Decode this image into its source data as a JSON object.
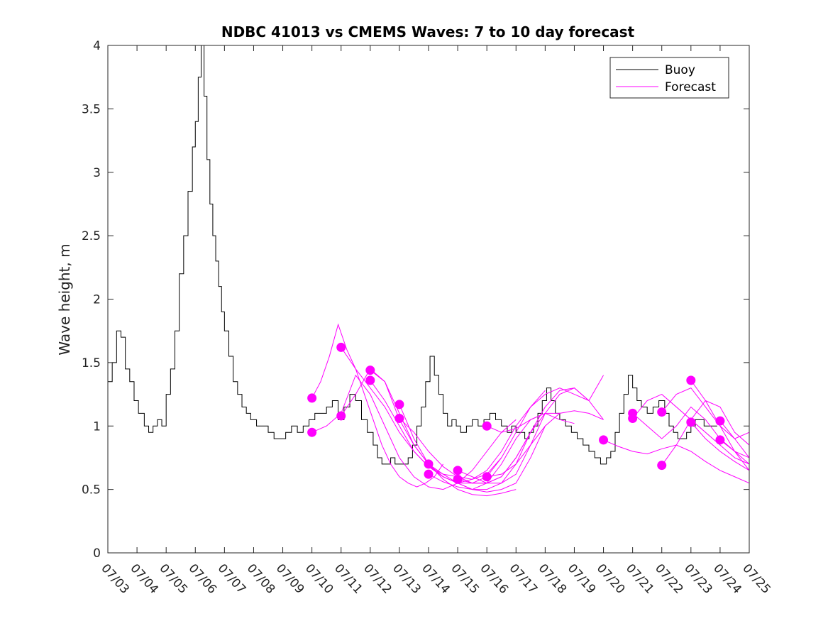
{
  "chart_data": {
    "type": "line",
    "title": "NDBC 41013 vs CMEMS Waves: 7 to 10 day forecast",
    "xlabel": "",
    "ylabel": "Wave height, m",
    "x_tick_labels": [
      "07/03",
      "07/04",
      "07/05",
      "07/06",
      "07/07",
      "07/08",
      "07/09",
      "07/10",
      "07/11",
      "07/12",
      "07/13",
      "07/14",
      "07/15",
      "07/16",
      "07/17",
      "07/18",
      "07/19",
      "07/20",
      "07/21",
      "07/22",
      "07/23",
      "07/24",
      "07/25"
    ],
    "xlim": [
      0,
      22
    ],
    "ylim": [
      0,
      4
    ],
    "y_ticks": [
      0,
      0.5,
      1,
      1.5,
      2,
      2.5,
      3,
      3.5,
      4
    ],
    "y_tick_labels": [
      "0",
      "0.5",
      "1",
      "1.5",
      "2",
      "2.5",
      "3",
      "3.5",
      "4"
    ],
    "grid": false,
    "legend": {
      "placement": "top-right",
      "entries": [
        "Buoy",
        "Forecast"
      ]
    },
    "colors": {
      "buoy": "#000000",
      "forecast": "#ff00ff"
    },
    "series": [
      {
        "name": "Buoy",
        "x": [
          0,
          0.15,
          0.3,
          0.45,
          0.6,
          0.75,
          0.9,
          1.05,
          1.25,
          1.4,
          1.55,
          1.7,
          1.85,
          2.0,
          2.15,
          2.3,
          2.45,
          2.6,
          2.75,
          2.9,
          3.0,
          3.1,
          3.2,
          3.3,
          3.4,
          3.5,
          3.6,
          3.7,
          3.8,
          3.9,
          4.0,
          4.15,
          4.3,
          4.45,
          4.6,
          4.75,
          4.9,
          5.1,
          5.3,
          5.5,
          5.7,
          5.9,
          6.1,
          6.3,
          6.5,
          6.7,
          6.9,
          7.1,
          7.3,
          7.5,
          7.7,
          7.9,
          8.1,
          8.3,
          8.5,
          8.7,
          8.9,
          9.1,
          9.25,
          9.4,
          9.55,
          9.7,
          9.85,
          10.0,
          10.15,
          10.3,
          10.45,
          10.6,
          10.75,
          10.9,
          11.05,
          11.2,
          11.35,
          11.5,
          11.65,
          11.8,
          11.95,
          12.1,
          12.3,
          12.5,
          12.7,
          12.9,
          13.1,
          13.3,
          13.5,
          13.7,
          13.85,
          14.0,
          14.15,
          14.3,
          14.45,
          14.6,
          14.75,
          14.9,
          15.05,
          15.2,
          15.35,
          15.5,
          15.7,
          15.9,
          16.1,
          16.3,
          16.5,
          16.7,
          16.9,
          17.1,
          17.25,
          17.4,
          17.55,
          17.7,
          17.85,
          18.0,
          18.15,
          18.3,
          18.5,
          18.7,
          18.9,
          19.1,
          19.25,
          19.4,
          19.55,
          19.7,
          19.85,
          20.0,
          20.15,
          20.3,
          20.45,
          20.6,
          20.75,
          20.9
        ],
        "values": [
          1.35,
          1.5,
          1.75,
          1.7,
          1.45,
          1.35,
          1.2,
          1.1,
          1.0,
          0.95,
          1.0,
          1.05,
          1.0,
          1.25,
          1.45,
          1.75,
          2.2,
          2.5,
          2.85,
          3.2,
          3.4,
          3.75,
          4.0,
          3.6,
          3.1,
          2.75,
          2.5,
          2.3,
          2.1,
          1.9,
          1.75,
          1.55,
          1.35,
          1.25,
          1.15,
          1.1,
          1.05,
          1.0,
          1.0,
          0.95,
          0.9,
          0.9,
          0.95,
          1.0,
          0.95,
          1.0,
          1.05,
          1.1,
          1.1,
          1.15,
          1.2,
          1.05,
          1.15,
          1.25,
          1.2,
          1.05,
          0.95,
          0.85,
          0.75,
          0.7,
          0.7,
          0.75,
          0.7,
          0.7,
          0.7,
          0.75,
          0.85,
          1.0,
          1.15,
          1.35,
          1.55,
          1.4,
          1.25,
          1.1,
          1.0,
          1.05,
          1.0,
          0.95,
          1.0,
          1.05,
          1.0,
          1.05,
          1.1,
          1.05,
          1.0,
          0.95,
          1.0,
          0.95,
          0.95,
          0.9,
          0.95,
          1.0,
          1.1,
          1.2,
          1.3,
          1.2,
          1.1,
          1.05,
          1.0,
          0.95,
          0.9,
          0.85,
          0.8,
          0.75,
          0.7,
          0.75,
          0.8,
          0.95,
          1.1,
          1.25,
          1.4,
          1.3,
          1.2,
          1.15,
          1.1,
          1.15,
          1.2,
          1.1,
          1.0,
          0.95,
          0.9,
          0.9,
          0.95,
          1.0,
          1.05,
          1.05,
          1.0,
          1.0,
          1.0,
          1.0
        ]
      },
      {
        "name": "Forecast",
        "runs": [
          {
            "x": [
              7.0,
              7.3,
              7.6,
              7.9,
              8.2,
              8.5,
              8.8,
              9.1,
              9.4,
              9.7,
              10.0,
              10.3,
              10.6,
              10.9,
              11.2,
              11.5
            ],
            "values": [
              1.22,
              1.35,
              1.55,
              1.8,
              1.6,
              1.45,
              1.25,
              1.05,
              0.85,
              0.7,
              0.6,
              0.55,
              0.52,
              0.55,
              0.6,
              0.7
            ]
          },
          {
            "x": [
              7.0,
              7.5,
              8.0,
              8.5,
              9.0,
              9.5,
              10.0,
              10.5,
              11.0,
              11.5,
              12.0,
              12.5,
              13.0,
              13.5,
              14.0
            ],
            "values": [
              0.95,
              1.0,
              1.1,
              1.4,
              1.25,
              1.0,
              0.75,
              0.6,
              0.52,
              0.5,
              0.55,
              0.65,
              0.8,
              0.95,
              1.05
            ]
          },
          {
            "x": [
              8.0,
              8.5,
              9.0,
              9.5,
              10.0,
              10.5,
              11.0,
              11.5,
              12.0,
              12.5,
              13.0,
              13.5,
              14.0,
              14.5,
              15.0
            ],
            "values": [
              1.62,
              1.45,
              1.3,
              1.15,
              0.95,
              0.8,
              0.68,
              0.6,
              0.55,
              0.55,
              0.6,
              0.75,
              0.95,
              1.15,
              1.28
            ]
          },
          {
            "x": [
              8.0,
              8.5,
              9.0,
              9.5,
              10.0,
              10.5,
              11.0,
              11.5,
              12.0,
              12.5,
              13.0,
              13.5,
              14.0,
              14.5,
              15.0,
              15.5,
              16.0,
              16.5,
              17.0
            ],
            "values": [
              1.08,
              1.25,
              1.45,
              1.35,
              1.05,
              0.85,
              0.7,
              0.6,
              0.55,
              0.58,
              0.65,
              0.8,
              1.0,
              1.15,
              1.25,
              1.3,
              1.25,
              1.2,
              1.4
            ]
          },
          {
            "x": [
              9.0,
              9.5,
              10.0,
              10.5,
              11.0,
              11.5,
              12.0,
              12.5,
              13.0,
              13.5,
              14.0,
              14.5,
              15.0
            ],
            "values": [
              1.44,
              1.35,
              1.1,
              0.85,
              0.7,
              0.6,
              0.55,
              0.5,
              0.55,
              0.7,
              0.9,
              1.05,
              1.1
            ]
          },
          {
            "x": [
              9.0,
              9.5,
              10.0,
              10.5,
              11.0,
              11.5,
              12.0,
              12.5,
              13.0,
              13.5
            ],
            "values": [
              1.36,
              1.2,
              1.0,
              0.8,
              0.68,
              0.62,
              0.6,
              0.58,
              0.62,
              0.75
            ]
          },
          {
            "x": [
              10.0,
              10.5,
              11.0,
              11.5,
              12.0,
              12.5,
              13.0,
              13.5,
              14.0
            ],
            "values": [
              1.17,
              0.9,
              0.7,
              0.58,
              0.5,
              0.46,
              0.45,
              0.47,
              0.5
            ]
          },
          {
            "x": [
              10.0,
              10.5,
              11.0,
              11.5,
              12.0,
              12.5,
              13.0,
              13.5,
              14.0,
              14.5,
              15.0,
              15.5
            ],
            "values": [
              1.06,
              0.95,
              0.8,
              0.68,
              0.6,
              0.55,
              0.55,
              0.6,
              0.75,
              0.95,
              1.1,
              1.1
            ]
          },
          {
            "x": [
              11.0,
              11.5,
              12.0,
              12.5,
              13.0,
              13.5,
              14.0,
              14.5,
              15.0
            ],
            "values": [
              0.7,
              0.62,
              0.55,
              0.5,
              0.48,
              0.5,
              0.55,
              0.75,
              1.0
            ]
          },
          {
            "x": [
              11.0,
              11.5,
              12.0,
              12.5,
              13.0,
              13.5,
              14.0,
              14.5,
              15.0
            ],
            "values": [
              0.62,
              0.56,
              0.52,
              0.5,
              0.5,
              0.55,
              0.7,
              0.95,
              1.15
            ]
          },
          {
            "x": [
              12.0,
              12.5,
              13.0,
              13.5,
              14.0,
              14.5,
              15.0,
              15.5,
              16.0,
              16.5
            ],
            "values": [
              0.65,
              0.6,
              0.55,
              0.55,
              0.62,
              0.85,
              1.1,
              1.25,
              1.3,
              1.2
            ]
          },
          {
            "x": [
              12.0,
              12.5,
              13.0,
              13.5,
              14.0,
              14.5,
              15.0,
              15.5,
              16.0,
              16.5,
              17.0
            ],
            "values": [
              0.58,
              0.55,
              0.55,
              0.6,
              0.75,
              0.95,
              1.15,
              1.28,
              1.3,
              1.2,
              1.05
            ]
          },
          {
            "x": [
              13.0,
              13.5,
              14.0,
              14.5,
              15.0,
              15.5,
              16.0
            ],
            "values": [
              1.0,
              0.95,
              0.98,
              1.05,
              1.1,
              1.05,
              1.02
            ]
          },
          {
            "x": [
              13.0,
              13.5,
              14.0,
              14.5,
              15.0,
              15.5,
              16.0,
              16.5,
              17.0
            ],
            "values": [
              0.6,
              0.62,
              0.7,
              0.85,
              1.0,
              1.1,
              1.12,
              1.1,
              1.05
            ]
          },
          {
            "x": [
              17.0,
              17.5,
              18.0,
              18.5,
              19.0,
              19.5,
              20.0,
              20.5,
              21.0,
              21.5,
              22.0
            ],
            "values": [
              0.89,
              0.84,
              0.8,
              0.78,
              0.82,
              0.85,
              0.8,
              0.72,
              0.65,
              0.6,
              0.55
            ]
          },
          {
            "x": [
              18.0,
              18.5,
              19.0,
              19.5,
              20.0,
              20.5,
              21.0,
              21.5,
              22.0
            ],
            "values": [
              1.1,
              1.0,
              0.9,
              1.0,
              1.15,
              1.05,
              0.9,
              0.8,
              0.75
            ]
          },
          {
            "x": [
              18.0,
              18.5,
              19.0,
              19.5,
              20.0,
              20.5,
              21.0,
              21.5,
              22.0
            ],
            "values": [
              1.06,
              1.2,
              1.25,
              1.15,
              1.05,
              0.95,
              0.85,
              0.75,
              0.7
            ]
          },
          {
            "x": [
              19.0,
              19.5,
              20.0,
              20.5,
              21.0,
              21.5,
              22.0
            ],
            "values": [
              1.11,
              1.25,
              1.3,
              1.15,
              1.0,
              0.9,
              0.95
            ]
          },
          {
            "x": [
              19.0,
              19.5,
              20.0,
              20.5,
              21.0,
              21.5,
              22.0
            ],
            "values": [
              0.69,
              0.85,
              1.05,
              1.2,
              1.15,
              0.95,
              0.85
            ]
          },
          {
            "x": [
              20.0,
              20.5,
              21.0,
              21.5,
              22.0
            ],
            "values": [
              1.36,
              1.2,
              1.0,
              0.8,
              0.7
            ]
          },
          {
            "x": [
              20.0,
              20.5,
              21.0,
              21.5,
              22.0
            ],
            "values": [
              1.03,
              0.9,
              0.8,
              0.72,
              0.65
            ]
          },
          {
            "x": [
              21.0,
              21.5,
              22.0
            ],
            "values": [
              1.04,
              0.9,
              0.75
            ]
          },
          {
            "x": [
              21.0,
              21.5,
              22.0
            ],
            "values": [
              0.89,
              0.8,
              0.65
            ]
          }
        ]
      }
    ]
  }
}
